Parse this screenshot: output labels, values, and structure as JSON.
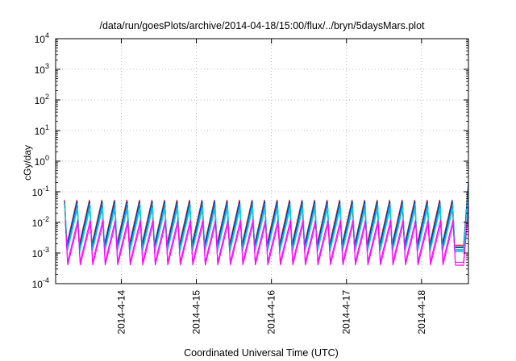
{
  "chart_data": {
    "type": "line",
    "title": "/data/run/goesPlots/archive/2014-04-18/15:00/flux/../bryn/5daysMars.plot",
    "xlabel": "Coordinated Universal Time (UTC)",
    "ylabel": "cGy/day",
    "y_scale": "log",
    "ylim": [
      0.0001,
      10000
    ],
    "xlim": [
      "2014-04-13 03:00",
      "2014-04-18 15:00"
    ],
    "x_tick_labels": [
      "2014-4-14",
      "2014-4-15",
      "2014-4-16",
      "2014-4-17",
      "2014-4-18"
    ],
    "y_ticks": [
      {
        "base": "10",
        "exp": "-4",
        "value": 0.0001
      },
      {
        "base": "10",
        "exp": "-3",
        "value": 0.001
      },
      {
        "base": "10",
        "exp": "-2",
        "value": 0.01
      },
      {
        "base": "10",
        "exp": "-1",
        "value": 0.1
      },
      {
        "base": "10",
        "exp": "0",
        "value": 1
      },
      {
        "base": "10",
        "exp": "1",
        "value": 10
      },
      {
        "base": "10",
        "exp": "2",
        "value": 100
      },
      {
        "base": "10",
        "exp": "3",
        "value": 1000
      },
      {
        "base": "10",
        "exp": "4",
        "value": 10000
      }
    ],
    "grid": true,
    "legend": "none",
    "pattern": {
      "description": "sawtooth oscillation, ~6 cycles per day, rising slowly then dropping sharply",
      "cycles_per_day": 6,
      "end_spike": true
    },
    "series": [
      {
        "color": "#ff0000",
        "low": 0.0018,
        "high": 0.055,
        "end": 0.22
      },
      {
        "color": "#00a000",
        "low": 0.0016,
        "high": 0.05,
        "end": 0.2
      },
      {
        "color": "#0000ff",
        "low": 0.0015,
        "high": 0.048,
        "end": 0.19
      },
      {
        "color": "#00bbbb",
        "low": 0.0013,
        "high": 0.042,
        "end": 0.16
      },
      {
        "color": "#1e90ff",
        "low": 0.0012,
        "high": 0.038,
        "end": 0.13
      },
      {
        "color": "#00dddd",
        "low": 0.0011,
        "high": 0.03,
        "end": 0.1
      },
      {
        "color": "#ff00ff",
        "low": 0.0005,
        "high": 0.012,
        "end": 0.04
      },
      {
        "color": "#ff00ff",
        "low": 0.0004,
        "high": 0.009,
        "end": 0.03
      }
    ]
  }
}
